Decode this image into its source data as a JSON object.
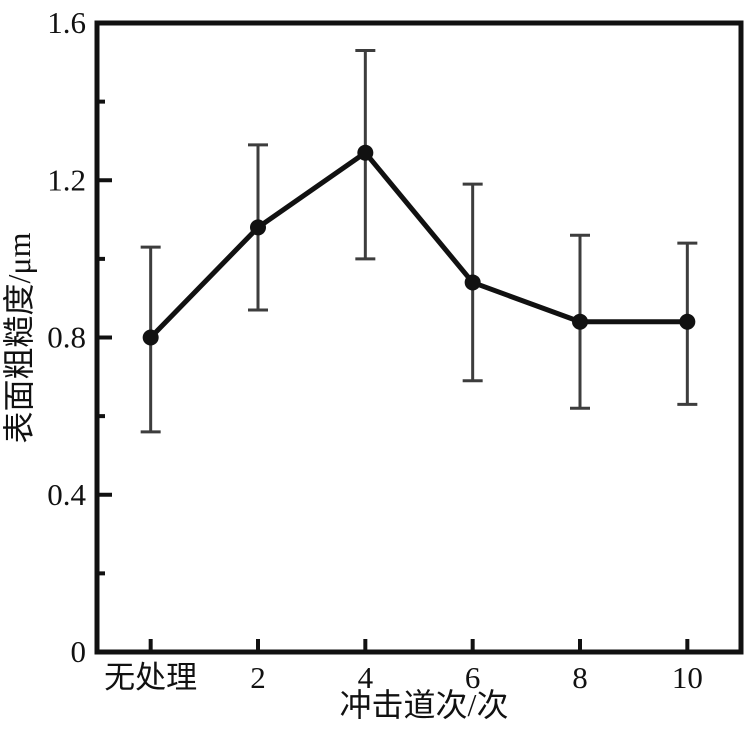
{
  "chart_data": {
    "type": "line",
    "title": "",
    "categories": [
      "无处理",
      "2",
      "4",
      "6",
      "8",
      "10"
    ],
    "series": [
      {
        "name": "表面粗糙度",
        "values": [
          0.8,
          1.08,
          1.27,
          0.94,
          0.84,
          0.84
        ],
        "error_low": [
          0.56,
          0.87,
          1.0,
          0.69,
          0.62,
          0.63
        ],
        "error_high": [
          1.03,
          1.29,
          1.53,
          1.19,
          1.06,
          1.04
        ]
      }
    ],
    "xlabel": "冲击道次/次",
    "ylabel": "表面粗糙度/μm",
    "ylim": [
      0,
      1.6
    ],
    "y_major_ticks": [
      0,
      0.4,
      0.8,
      1.2,
      1.6
    ],
    "y_tick_labels": [
      "0",
      "0.4",
      "0.8",
      "1.2",
      "1.6"
    ],
    "y_minor_ticks": [
      0.2,
      0.6,
      1.0,
      1.4
    ],
    "grid": false,
    "legend": "none",
    "marker": "circle",
    "colors": {
      "line": "#111111",
      "marker": "#111111",
      "error_bar": "#3d3d3d",
      "axis": "#111111",
      "tick_text": "#111111",
      "background": "#ffffff"
    }
  }
}
